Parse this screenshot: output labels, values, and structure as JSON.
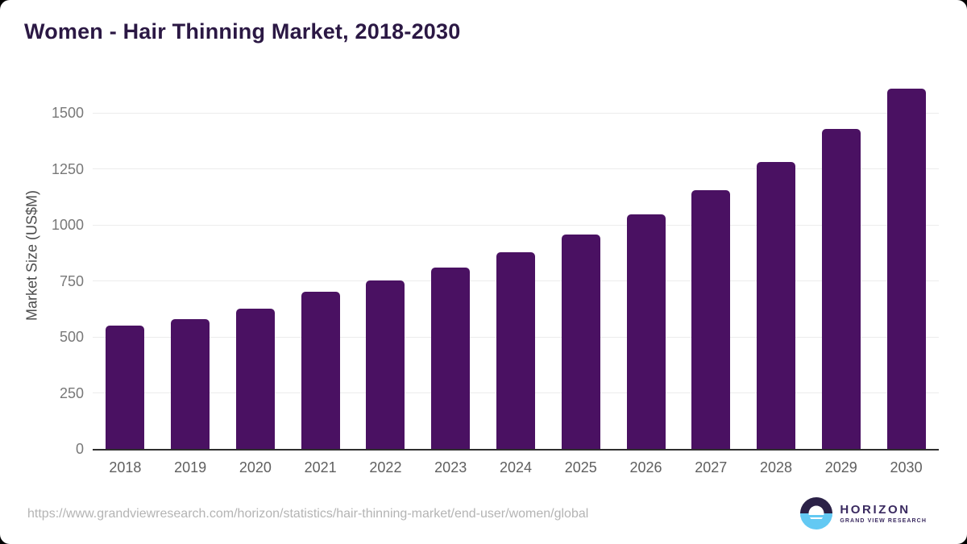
{
  "page": {
    "outside_background": "#000000",
    "card_background": "#ffffff"
  },
  "header": {
    "title": "Women - Hair Thinning Market, 2018-2030",
    "title_color": "#2b1844"
  },
  "chart_data": {
    "type": "bar",
    "title": "Women - Hair Thinning Market, 2018-2030",
    "categories": [
      "2018",
      "2019",
      "2020",
      "2021",
      "2022",
      "2023",
      "2024",
      "2025",
      "2026",
      "2027",
      "2028",
      "2029",
      "2030"
    ],
    "values": [
      550,
      578,
      627,
      702,
      752,
      811,
      877,
      956,
      1046,
      1153,
      1280,
      1427,
      1607
    ],
    "xlabel": "",
    "ylabel": "Market Size (US$M)",
    "ylim": [
      0,
      1615
    ],
    "yticks": [
      0,
      250,
      500,
      750,
      1000,
      1250,
      1500
    ],
    "grid": "horizontal-only",
    "legend": "none",
    "bar_color": "#4a1162",
    "gridline_color": "#ececec",
    "axis_line_color": "#2f2f2f",
    "tick_label_color": "#787878",
    "x_label_color": "#5f5f5f"
  },
  "footer": {
    "source_url": "https://www.grandviewresearch.com/horizon/statistics/hair-thinning-market/end-user/women/global",
    "logo": {
      "brand": "HORIZON",
      "subtext": "GRAND VIEW RESEARCH",
      "mark_top_color": "#2b2147",
      "mark_bottom_color": "#63c9f3",
      "text_color": "#3a2a60"
    }
  }
}
